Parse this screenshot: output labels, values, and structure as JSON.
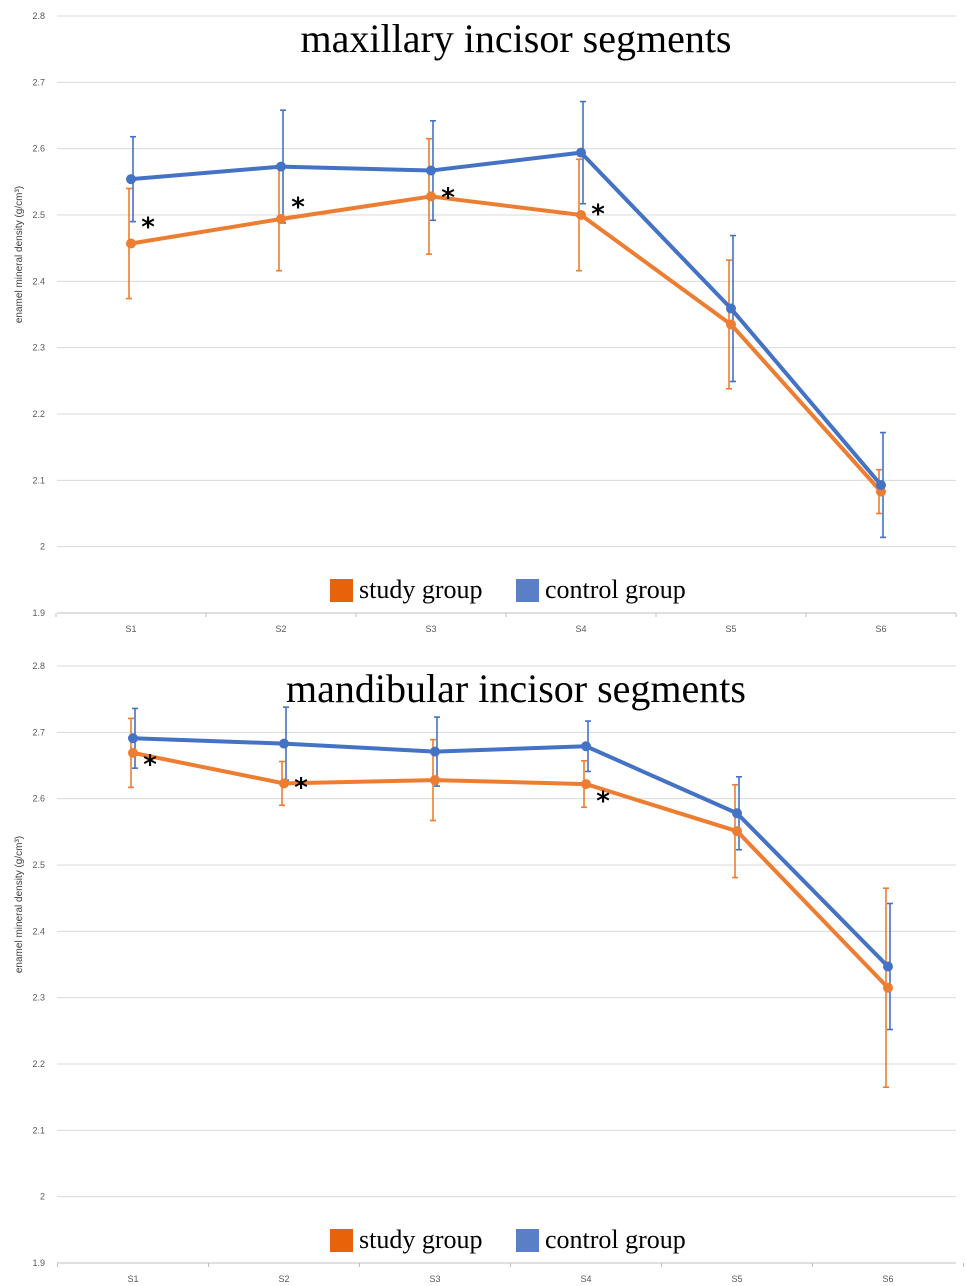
{
  "chart_data": [
    {
      "type": "line",
      "title": "maxillary incisor segments",
      "ylabel": "enamel mineral density (g/cm³)",
      "xlabel": "",
      "categories": [
        "S1",
        "S2",
        "S3",
        "S4",
        "S5",
        "S6"
      ],
      "ylim": [
        1.9,
        2.8
      ],
      "yticks": [
        "1.9",
        "2",
        "2.1",
        "2.2",
        "2.3",
        "2.4",
        "2.5",
        "2.6",
        "2.7",
        "2.8"
      ],
      "grid": true,
      "legend": "bottom",
      "series": [
        {
          "name": "study group",
          "color": "#ED7D31",
          "legend_color": "#E8620A",
          "values": [
            2.457,
            2.494,
            2.528,
            2.5,
            2.335,
            2.083
          ],
          "error": [
            0.083,
            0.078,
            0.087,
            0.084,
            0.097,
            0.033
          ]
        },
        {
          "name": "control group",
          "color": "#4472C4",
          "legend_color": "#5B7FC7",
          "values": [
            2.554,
            2.573,
            2.567,
            2.594,
            2.359,
            2.093
          ],
          "error": [
            0.064,
            0.085,
            0.075,
            0.077,
            0.11,
            0.079
          ]
        }
      ],
      "annotations": [
        {
          "text": "*",
          "category": "S1",
          "y": 2.49
        },
        {
          "text": "*",
          "category": "S2",
          "y": 2.52
        },
        {
          "text": "*",
          "category": "S3",
          "y": 2.535
        },
        {
          "text": "*",
          "category": "S4",
          "y": 2.51
        }
      ]
    },
    {
      "type": "line",
      "title": "mandibular incisor segments",
      "ylabel": "enamel mineral density (g/cm³)",
      "xlabel": "",
      "categories": [
        "S1",
        "S2",
        "S3",
        "S4",
        "S5",
        "S6"
      ],
      "ylim": [
        1.9,
        2.8
      ],
      "yticks": [
        "1.9",
        "2",
        "2.1",
        "2.2",
        "2.3",
        "2.4",
        "2.5",
        "2.6",
        "2.7",
        "2.8"
      ],
      "grid": true,
      "legend": "bottom",
      "series": [
        {
          "name": "study group",
          "color": "#ED7D31",
          "legend_color": "#E8620A",
          "values": [
            2.669,
            2.623,
            2.628,
            2.622,
            2.551,
            2.315
          ],
          "error": [
            0.052,
            0.033,
            0.061,
            0.035,
            0.07,
            0.15
          ]
        },
        {
          "name": "control group",
          "color": "#4472C4",
          "legend_color": "#5B7FC7",
          "values": [
            2.691,
            2.683,
            2.671,
            2.679,
            2.578,
            2.347
          ],
          "error": [
            0.045,
            0.055,
            0.052,
            0.038,
            0.055,
            0.095
          ]
        }
      ],
      "annotations": [
        {
          "text": "*",
          "category": "S1",
          "y": 2.66
        },
        {
          "text": "*",
          "category": "S2",
          "y": 2.625
        },
        {
          "text": "*",
          "category": "S4",
          "y": 2.605
        }
      ]
    }
  ]
}
